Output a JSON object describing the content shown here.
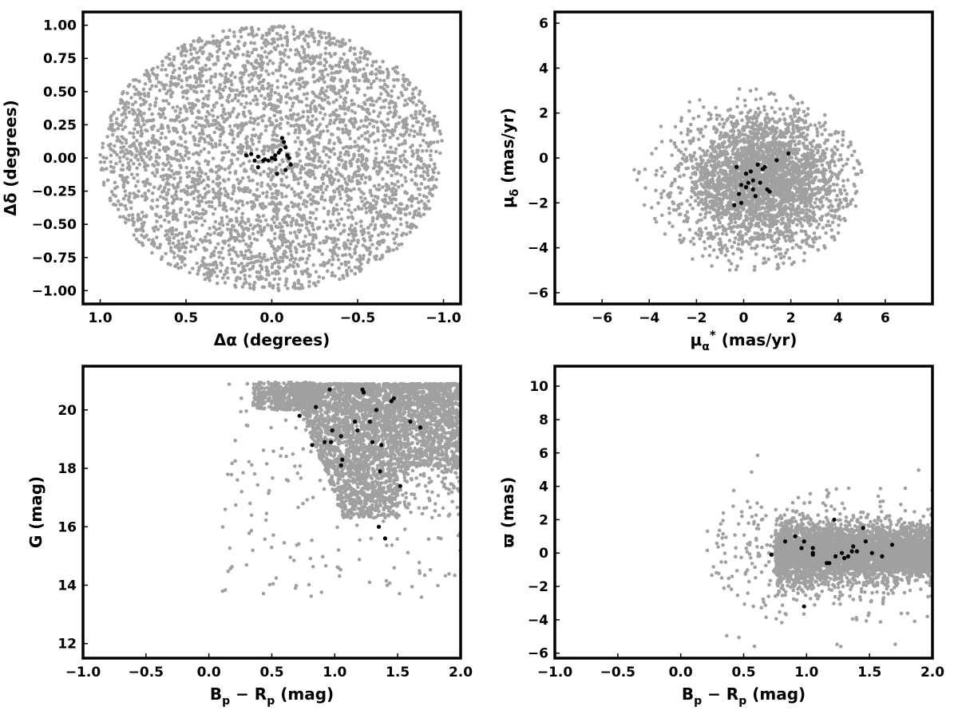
{
  "chart_data": [
    {
      "type": "scatter",
      "xlabel": "Δα (degrees)",
      "ylabel": "Δδ (degrees)",
      "xlim": [
        1.1,
        -1.1
      ],
      "ylim": [
        -1.1,
        1.1
      ],
      "x_reversed": true,
      "xticks": [
        "1.0",
        "0.5",
        "0.0",
        "−0.5",
        "−1.0"
      ],
      "yticks": [
        "1.00",
        "0.75",
        "0.50",
        "0.25",
        "0.00",
        "−0.25",
        "−0.50",
        "−0.75",
        "−1.00"
      ],
      "background": {
        "color": "#a0a0a0",
        "count": 3600,
        "shape": "disk",
        "center": [
          0,
          0
        ],
        "radius": 1.0
      },
      "members": {
        "color": "#000000",
        "points": [
          [
            0.15,
            0.02
          ],
          [
            0.12,
            0.03
          ],
          [
            0.1,
            -0.02
          ],
          [
            0.08,
            0.01
          ],
          [
            0.05,
            -0.02
          ],
          [
            0.04,
            -0.01
          ],
          [
            0.02,
            -0.02
          ],
          [
            0.0,
            0.0
          ],
          [
            -0.02,
            -0.01
          ],
          [
            -0.04,
            0.04
          ],
          [
            -0.05,
            0.06
          ],
          [
            -0.06,
            0.15
          ],
          [
            -0.07,
            0.12
          ],
          [
            -0.08,
            0.08
          ],
          [
            -0.09,
            0.02
          ],
          [
            -0.1,
            0.0
          ],
          [
            -0.11,
            -0.05
          ],
          [
            -0.08,
            -0.09
          ],
          [
            -0.03,
            -0.12
          ],
          [
            0.08,
            -0.07
          ],
          [
            -0.02,
            0.02
          ]
        ]
      }
    },
    {
      "type": "scatter",
      "xlabel": "μ*α (mas/yr)",
      "ylabel": "μδ (mas/yr)",
      "xlim": [
        -8,
        8
      ],
      "ylim": [
        -6.5,
        6.5
      ],
      "xticks": [
        "−6",
        "−4",
        "−2",
        "0",
        "2",
        "4",
        "6"
      ],
      "yticks": [
        "6",
        "4",
        "2",
        "0",
        "−2",
        "−4",
        "−6"
      ],
      "background": {
        "color": "#a0a0a0",
        "count": 3000,
        "center": [
          0.8,
          -1.0
        ],
        "spread": [
          1.7,
          1.5
        ],
        "clip": {
          "xmin": -5,
          "xmax": 5,
          "ymin": -5,
          "ymax": 5
        }
      },
      "members": {
        "color": "#000000",
        "points": [
          [
            -0.3,
            -0.4
          ],
          [
            -0.1,
            -1.2
          ],
          [
            0.1,
            -0.7
          ],
          [
            0.2,
            -1.1
          ],
          [
            0.3,
            -0.6
          ],
          [
            0.4,
            -1.4
          ],
          [
            0.5,
            -1.7
          ],
          [
            0.6,
            -0.3
          ],
          [
            0.7,
            -1.1
          ],
          [
            0.8,
            -0.5
          ],
          [
            0.9,
            -0.4
          ],
          [
            1.0,
            -1.4
          ],
          [
            1.1,
            -1.5
          ],
          [
            0.1,
            -1.3
          ],
          [
            -0.1,
            -2.0
          ],
          [
            -0.2,
            -1.6
          ],
          [
            -0.4,
            -2.1
          ],
          [
            1.4,
            -0.1
          ],
          [
            1.9,
            0.2
          ],
          [
            0.4,
            -1.0
          ]
        ]
      }
    },
    {
      "type": "scatter",
      "xlabel": "Bp − Rp (mag)",
      "ylabel": "G (mag)",
      "xlim": [
        -1.0,
        2.0
      ],
      "ylim": [
        11.5,
        21.5
      ],
      "xticks": [
        "−1.0",
        "−0.5",
        "0.0",
        "0.5",
        "1.0",
        "1.5",
        "2.0"
      ],
      "yticks": [
        "20",
        "18",
        "16",
        "14",
        "12"
      ],
      "background": {
        "color": "#a0a0a0",
        "count": 4200
      },
      "members": {
        "color": "#000000",
        "points": [
          [
            0.72,
            19.8
          ],
          [
            0.85,
            20.1
          ],
          [
            0.82,
            18.8
          ],
          [
            0.92,
            18.9
          ],
          [
            0.96,
            20.7
          ],
          [
            0.98,
            19.3
          ],
          [
            0.97,
            18.9
          ],
          [
            1.05,
            19.1
          ],
          [
            1.06,
            18.3
          ],
          [
            1.05,
            18.1
          ],
          [
            1.16,
            19.6
          ],
          [
            1.18,
            19.3
          ],
          [
            1.22,
            20.7
          ],
          [
            1.23,
            20.6
          ],
          [
            1.28,
            19.6
          ],
          [
            1.3,
            18.9
          ],
          [
            1.33,
            20.0
          ],
          [
            1.36,
            17.9
          ],
          [
            1.37,
            18.8
          ],
          [
            1.35,
            16.0
          ],
          [
            1.4,
            15.6
          ],
          [
            1.45,
            20.3
          ],
          [
            1.47,
            20.4
          ],
          [
            1.52,
            17.4
          ],
          [
            1.6,
            19.6
          ],
          [
            1.68,
            19.4
          ]
        ]
      }
    },
    {
      "type": "scatter",
      "xlabel": "Bp − Rp (mag)",
      "ylabel": "ϖ (mas)",
      "xlim": [
        -1.0,
        2.0
      ],
      "ylim": [
        -6.3,
        11.2
      ],
      "xticks": [
        "−1.0",
        "−0.5",
        "0.0",
        "0.5",
        "1.0",
        "1.5",
        "2.0"
      ],
      "yticks": [
        "10",
        "8",
        "6",
        "4",
        "2",
        "0",
        "−2",
        "−4",
        "−6"
      ],
      "background": {
        "color": "#a0a0a0",
        "count": 4200
      },
      "members": {
        "color": "#000000",
        "points": [
          [
            0.72,
            -0.1
          ],
          [
            0.83,
            0.7
          ],
          [
            0.91,
            1.0
          ],
          [
            0.96,
            0.3
          ],
          [
            0.98,
            -3.2
          ],
          [
            1.05,
            0.3
          ],
          [
            1.05,
            -0.1
          ],
          [
            1.05,
            0.0
          ],
          [
            1.16,
            -0.6
          ],
          [
            1.18,
            -0.6
          ],
          [
            1.22,
            2.0
          ],
          [
            1.23,
            -0.2
          ],
          [
            1.28,
            0.0
          ],
          [
            1.3,
            -0.3
          ],
          [
            1.33,
            -0.2
          ],
          [
            1.36,
            0.1
          ],
          [
            1.37,
            0.4
          ],
          [
            1.4,
            0.1
          ],
          [
            1.45,
            1.5
          ],
          [
            1.47,
            0.7
          ],
          [
            1.52,
            0.0
          ],
          [
            1.6,
            -0.2
          ],
          [
            1.68,
            0.5
          ],
          [
            0.98,
            0.7
          ]
        ]
      }
    }
  ]
}
